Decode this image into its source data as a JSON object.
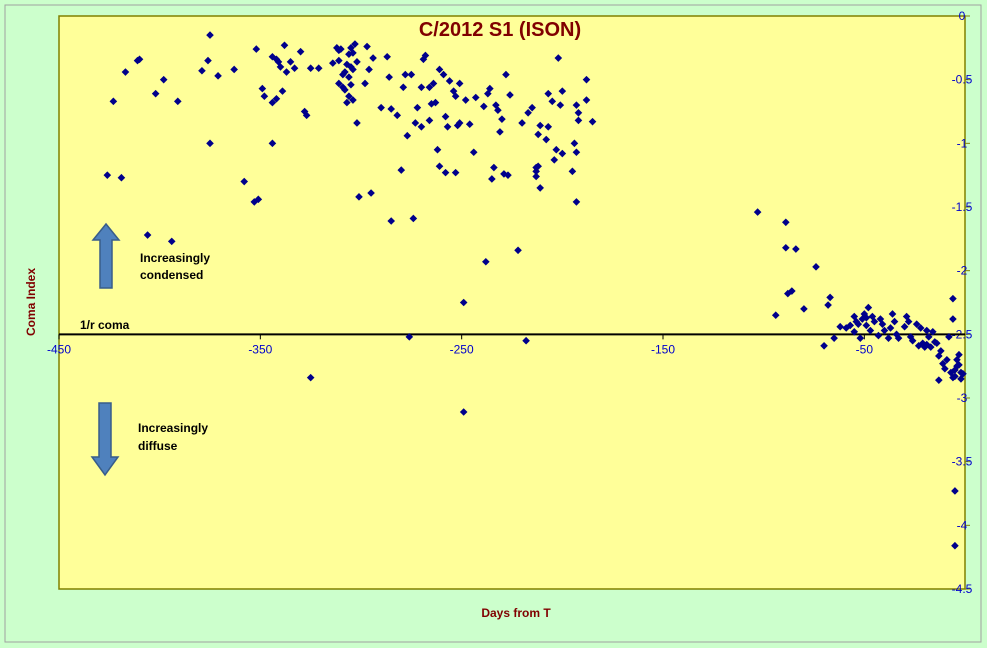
{
  "chart_data": {
    "type": "scatter",
    "title": "C/2012 S1 (ISON)",
    "xlabel": "Days from T",
    "ylabel": "Coma Index",
    "xlim": [
      -450,
      0
    ],
    "ylim": [
      -4.5,
      0
    ],
    "x_ticks": [
      "-450",
      "-350",
      "-250",
      "-150",
      "-50"
    ],
    "y_ticks": [
      "0",
      "-0.5",
      "-1",
      "-1.5",
      "-2",
      "-2.5",
      "-3",
      "-3.5",
      "-4",
      "-4.5"
    ],
    "reference_line": {
      "label": "1/r coma",
      "y": -2.5
    },
    "annotations": [
      {
        "label": "Increasingly condensed",
        "lines": [
          "Increasingly",
          "condensed"
        ],
        "direction": "up"
      },
      {
        "label": "Increasingly diffuse",
        "lines": [
          "Increasingly",
          "diffuse"
        ],
        "direction": "down"
      }
    ],
    "grid": false,
    "legend": "none",
    "colors": {
      "background": "#ccffcc",
      "plot_area": "#ffff99",
      "points": "#00008b",
      "axes": "#808000",
      "text_accent": "#800000",
      "tick_text": "#0000cc"
    },
    "points": [
      [
        -426,
        -1.25
      ],
      [
        -423,
        -0.67
      ],
      [
        -419,
        -1.27
      ],
      [
        -417,
        -0.44
      ],
      [
        -411,
        -0.35
      ],
      [
        -410,
        -0.34
      ],
      [
        -406,
        -1.72
      ],
      [
        -402,
        -0.61
      ],
      [
        -398,
        -0.5
      ],
      [
        -394,
        -1.77
      ],
      [
        -391,
        -0.67
      ],
      [
        -379,
        -0.43
      ],
      [
        -376,
        -0.35
      ],
      [
        -375,
        -1.0
      ],
      [
        -375,
        -0.15
      ],
      [
        -371,
        -0.47
      ],
      [
        -363,
        -0.42
      ],
      [
        -358,
        -1.3
      ],
      [
        -353,
        -1.46
      ],
      [
        -352,
        -0.26
      ],
      [
        -351,
        -1.44
      ],
      [
        -349,
        -0.57
      ],
      [
        -348,
        -0.63
      ],
      [
        -344,
        -1.0
      ],
      [
        -344,
        -0.32
      ],
      [
        -344,
        -0.68
      ],
      [
        -342,
        -0.65
      ],
      [
        -342,
        -0.34
      ],
      [
        -341,
        -0.36
      ],
      [
        -340,
        -0.4
      ],
      [
        -339,
        -0.59
      ],
      [
        -338,
        -0.23
      ],
      [
        -337,
        -0.44
      ],
      [
        -335,
        -0.36
      ],
      [
        -333,
        -0.41
      ],
      [
        -330,
        -0.28
      ],
      [
        -328,
        -0.75
      ],
      [
        -327,
        -0.78
      ],
      [
        -325,
        -0.41
      ],
      [
        -325,
        -2.84
      ],
      [
        -321,
        -0.41
      ],
      [
        -314,
        -0.37
      ],
      [
        -312,
        -0.25
      ],
      [
        -311,
        -0.27
      ],
      [
        -311,
        -0.35
      ],
      [
        -311,
        -0.53
      ],
      [
        -310,
        -0.26
      ],
      [
        -309,
        -0.46
      ],
      [
        -309,
        -0.56
      ],
      [
        -308,
        -0.44
      ],
      [
        -308,
        -0.58
      ],
      [
        -307,
        -0.38
      ],
      [
        -307,
        -0.68
      ],
      [
        -306,
        -0.3
      ],
      [
        -306,
        -0.48
      ],
      [
        -306,
        -0.63
      ],
      [
        -305,
        -0.25
      ],
      [
        -305,
        -0.4
      ],
      [
        -305,
        -0.54
      ],
      [
        -304,
        -0.29
      ],
      [
        -304,
        -0.42
      ],
      [
        -304,
        -0.66
      ],
      [
        -303,
        -0.22
      ],
      [
        -302,
        -0.36
      ],
      [
        -302,
        -0.84
      ],
      [
        -301,
        -1.42
      ],
      [
        -298,
        -0.53
      ],
      [
        -297,
        -0.24
      ],
      [
        -296,
        -0.42
      ],
      [
        -295,
        -1.39
      ],
      [
        -294,
        -0.33
      ],
      [
        -290,
        -0.72
      ],
      [
        -287,
        -0.32
      ],
      [
        -286,
        -0.48
      ],
      [
        -285,
        -0.73
      ],
      [
        -285,
        -1.61
      ],
      [
        -282,
        -0.78
      ],
      [
        -280,
        -1.21
      ],
      [
        -279,
        -0.56
      ],
      [
        -278,
        -0.46
      ],
      [
        -277,
        -0.94
      ],
      [
        -276,
        -2.52
      ],
      [
        -275,
        -0.46
      ],
      [
        -274,
        -1.59
      ],
      [
        -273,
        -0.84
      ],
      [
        -272,
        -0.72
      ],
      [
        -270,
        -0.87
      ],
      [
        -270,
        -0.56
      ],
      [
        -269,
        -0.34
      ],
      [
        -268,
        -0.31
      ],
      [
        -266,
        -0.56
      ],
      [
        -266,
        -0.82
      ],
      [
        -265,
        -0.69
      ],
      [
        -264,
        -0.53
      ],
      [
        -263,
        -0.68
      ],
      [
        -262,
        -1.05
      ],
      [
        -261,
        -1.18
      ],
      [
        -261,
        -0.42
      ],
      [
        -259,
        -0.46
      ],
      [
        -258,
        -0.79
      ],
      [
        -258,
        -1.23
      ],
      [
        -257,
        -0.87
      ],
      [
        -256,
        -0.51
      ],
      [
        -254,
        -0.59
      ],
      [
        -253,
        -0.63
      ],
      [
        -253,
        -1.23
      ],
      [
        -252,
        -0.86
      ],
      [
        -251,
        -0.53
      ],
      [
        -251,
        -0.84
      ],
      [
        -249,
        -2.25
      ],
      [
        -249,
        -3.11
      ],
      [
        -248,
        -0.66
      ],
      [
        -246,
        -0.85
      ],
      [
        -244,
        -1.07
      ],
      [
        -243,
        -0.64
      ],
      [
        -239,
        -0.71
      ],
      [
        -238,
        -1.93
      ],
      [
        -237,
        -0.61
      ],
      [
        -236,
        -0.57
      ],
      [
        -235,
        -1.28
      ],
      [
        -234,
        -1.19
      ],
      [
        -233,
        -0.7
      ],
      [
        -232,
        -0.74
      ],
      [
        -231,
        -0.91
      ],
      [
        -230,
        -0.81
      ],
      [
        -229,
        -1.24
      ],
      [
        -228,
        -0.46
      ],
      [
        -227,
        -1.25
      ],
      [
        -226,
        -0.62
      ],
      [
        -222,
        -1.84
      ],
      [
        -220,
        -0.84
      ],
      [
        -218,
        -2.55
      ],
      [
        -217,
        -0.76
      ],
      [
        -215,
        -0.72
      ],
      [
        -213,
        -1.22
      ],
      [
        -213,
        -1.19
      ],
      [
        -213,
        -1.26
      ],
      [
        -212,
        -1.18
      ],
      [
        -212,
        -0.93
      ],
      [
        -211,
        -1.35
      ],
      [
        -211,
        -0.86
      ],
      [
        -208,
        -0.97
      ],
      [
        -207,
        -0.87
      ],
      [
        -207,
        -0.61
      ],
      [
        -205,
        -0.67
      ],
      [
        -204,
        -1.13
      ],
      [
        -203,
        -1.05
      ],
      [
        -202,
        -0.33
      ],
      [
        -201,
        -0.7
      ],
      [
        -200,
        -1.08
      ],
      [
        -200,
        -0.59
      ],
      [
        -193,
        -0.7
      ],
      [
        -194,
        -1.0
      ],
      [
        -195,
        -1.22
      ],
      [
        -193,
        -1.46
      ],
      [
        -193,
        -1.07
      ],
      [
        -192,
        -0.76
      ],
      [
        -192,
        -0.82
      ],
      [
        -188,
        -0.5
      ],
      [
        -188,
        -0.66
      ],
      [
        -185,
        -0.83
      ],
      [
        -103,
        -1.54
      ],
      [
        -94,
        -2.35
      ],
      [
        -89,
        -1.62
      ],
      [
        -89,
        -1.82
      ],
      [
        -88,
        -2.18
      ],
      [
        -86,
        -2.16
      ],
      [
        -84,
        -1.83
      ],
      [
        -80,
        -2.3
      ],
      [
        -74,
        -1.97
      ],
      [
        -70,
        -2.59
      ],
      [
        -68,
        -2.27
      ],
      [
        -67,
        -2.21
      ],
      [
        -65,
        -2.53
      ],
      [
        -62,
        -2.44
      ],
      [
        -59,
        -2.45
      ],
      [
        -57,
        -2.43
      ],
      [
        -55,
        -2.48
      ],
      [
        -55,
        -2.36
      ],
      [
        -54,
        -2.4
      ],
      [
        -53,
        -2.42
      ],
      [
        -52,
        -2.53
      ],
      [
        -51,
        -2.38
      ],
      [
        -50,
        -2.34
      ],
      [
        -49,
        -2.43
      ],
      [
        -49,
        -2.37
      ],
      [
        -48,
        -2.29
      ],
      [
        -47,
        -2.47
      ],
      [
        -46,
        -2.36
      ],
      [
        -45,
        -2.4
      ],
      [
        -43,
        -2.51
      ],
      [
        -42,
        -2.38
      ],
      [
        -41,
        -2.42
      ],
      [
        -40,
        -2.47
      ],
      [
        -38,
        -2.53
      ],
      [
        -37,
        -2.45
      ],
      [
        -36,
        -2.34
      ],
      [
        -35,
        -2.4
      ],
      [
        -34,
        -2.5
      ],
      [
        -33,
        -2.53
      ],
      [
        -30,
        -2.44
      ],
      [
        -29,
        -2.36
      ],
      [
        -28,
        -2.4
      ],
      [
        -27,
        -2.52
      ],
      [
        -26,
        -2.55
      ],
      [
        -24,
        -2.42
      ],
      [
        -23,
        -2.59
      ],
      [
        -22,
        -2.45
      ],
      [
        -21,
        -2.57
      ],
      [
        -20,
        -2.6
      ],
      [
        -19,
        -2.47
      ],
      [
        -19,
        -2.58
      ],
      [
        -18,
        -2.52
      ],
      [
        -17,
        -2.6
      ],
      [
        -16,
        -2.48
      ],
      [
        -15,
        -2.56
      ],
      [
        -14,
        -2.57
      ],
      [
        -13,
        -2.86
      ],
      [
        -13,
        -2.67
      ],
      [
        -12,
        -2.63
      ],
      [
        -11,
        -2.73
      ],
      [
        -10,
        -2.77
      ],
      [
        -9,
        -2.7
      ],
      [
        -8,
        -2.52
      ],
      [
        -7,
        -2.8
      ],
      [
        -6,
        -2.22
      ],
      [
        -6,
        -2.84
      ],
      [
        -6,
        -2.38
      ],
      [
        -5,
        -2.83
      ],
      [
        -5,
        -2.78
      ],
      [
        -4,
        -2.7
      ],
      [
        -4,
        -2.75
      ],
      [
        -3,
        -2.66
      ],
      [
        -3,
        -2.74
      ],
      [
        -2,
        -2.8
      ],
      [
        -2,
        -2.85
      ],
      [
        -1,
        -2.81
      ],
      [
        -5,
        -3.73
      ],
      [
        -5,
        -4.16
      ]
    ]
  }
}
